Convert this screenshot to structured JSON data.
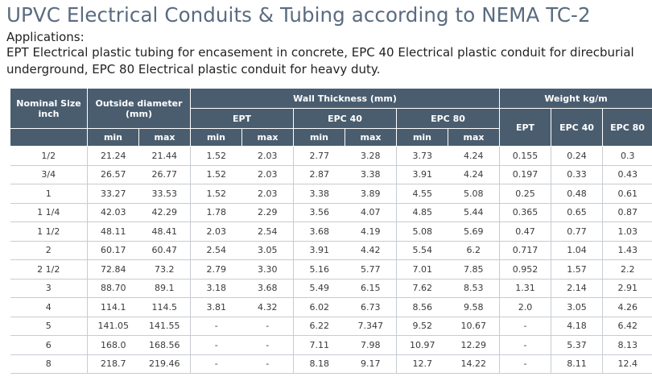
{
  "title": "UPVC Electrical Conduits & Tubing according to NEMA TC-2",
  "applications": {
    "heading": "Applications:",
    "line1": "EPT Electrical plastic tubing for encasement in concrete, EPC 40 Electrical plastic conduit for direcburial",
    "line2": "underground, EPC 80 Electrical plastic conduit for heavy duty."
  },
  "table": {
    "headers": {
      "nominal_size": "Nominal Size inch",
      "outside_diameter": "Outside diameter (mm)",
      "wall_thickness": "Wall Thickness (mm)",
      "weight": "Weight kg/m",
      "ept": "EPT",
      "epc40": "EPC 40",
      "epc80": "EPC 80",
      "min": "min",
      "max": "max"
    },
    "rows": [
      {
        "size": "1/2",
        "od_min": "21.24",
        "od_max": "21.44",
        "ept_min": "1.52",
        "ept_max": "2.03",
        "e40_min": "2.77",
        "e40_max": "3.28",
        "e80_min": "3.73",
        "e80_max": "4.24",
        "w_ept": "0.155",
        "w_e40": "0.24",
        "w_e80": "0.3"
      },
      {
        "size": "3/4",
        "od_min": "26.57",
        "od_max": "26.77",
        "ept_min": "1.52",
        "ept_max": "2.03",
        "e40_min": "2.87",
        "e40_max": "3.38",
        "e80_min": "3.91",
        "e80_max": "4.24",
        "w_ept": "0.197",
        "w_e40": "0.33",
        "w_e80": "0.43"
      },
      {
        "size": "1",
        "od_min": "33.27",
        "od_max": "33.53",
        "ept_min": "1.52",
        "ept_max": "2.03",
        "e40_min": "3.38",
        "e40_max": "3.89",
        "e80_min": "4.55",
        "e80_max": "5.08",
        "w_ept": "0.25",
        "w_e40": "0.48",
        "w_e80": "0.61"
      },
      {
        "size": "1 1/4",
        "od_min": "42.03",
        "od_max": "42.29",
        "ept_min": "1.78",
        "ept_max": "2.29",
        "e40_min": "3.56",
        "e40_max": "4.07",
        "e80_min": "4.85",
        "e80_max": "5.44",
        "w_ept": "0.365",
        "w_e40": "0.65",
        "w_e80": "0.87"
      },
      {
        "size": "1 1/2",
        "od_min": "48.11",
        "od_max": "48.41",
        "ept_min": "2.03",
        "ept_max": "2.54",
        "e40_min": "3.68",
        "e40_max": "4.19",
        "e80_min": "5.08",
        "e80_max": "5.69",
        "w_ept": "0.47",
        "w_e40": "0.77",
        "w_e80": "1.03"
      },
      {
        "size": "2",
        "od_min": "60.17",
        "od_max": "60.47",
        "ept_min": "2.54",
        "ept_max": "3.05",
        "e40_min": "3.91",
        "e40_max": "4.42",
        "e80_min": "5.54",
        "e80_max": "6.2",
        "w_ept": "0.717",
        "w_e40": "1.04",
        "w_e80": "1.43"
      },
      {
        "size": "2 1/2",
        "od_min": "72.84",
        "od_max": "73.2",
        "ept_min": "2.79",
        "ept_max": "3.30",
        "e40_min": "5.16",
        "e40_max": "5.77",
        "e80_min": "7.01",
        "e80_max": "7.85",
        "w_ept": "0.952",
        "w_e40": "1.57",
        "w_e80": "2.2"
      },
      {
        "size": "3",
        "od_min": "88.70",
        "od_max": "89.1",
        "ept_min": "3.18",
        "ept_max": "3.68",
        "e40_min": "5.49",
        "e40_max": "6.15",
        "e80_min": "7.62",
        "e80_max": "8.53",
        "w_ept": "1.31",
        "w_e40": "2.14",
        "w_e80": "2.91"
      },
      {
        "size": "4",
        "od_min": "114.1",
        "od_max": "114.5",
        "ept_min": "3.81",
        "ept_max": "4.32",
        "e40_min": "6.02",
        "e40_max": "6.73",
        "e80_min": "8.56",
        "e80_max": "9.58",
        "w_ept": "2.0",
        "w_e40": "3.05",
        "w_e80": "4.26"
      },
      {
        "size": "5",
        "od_min": "141.05",
        "od_max": "141.55",
        "ept_min": "-",
        "ept_max": "-",
        "e40_min": "6.22",
        "e40_max": "7.347",
        "e80_min": "9.52",
        "e80_max": "10.67",
        "w_ept": "-",
        "w_e40": "4.18",
        "w_e80": "6.42"
      },
      {
        "size": "6",
        "od_min": "168.0",
        "od_max": "168.56",
        "ept_min": "-",
        "ept_max": "-",
        "e40_min": "7.11",
        "e40_max": "7.98",
        "e80_min": "10.97",
        "e80_max": "12.29",
        "w_ept": "-",
        "w_e40": "5.37",
        "w_e80": "8.13"
      },
      {
        "size": "8",
        "od_min": "218.7",
        "od_max": "219.46",
        "ept_min": "-",
        "ept_max": "-",
        "e40_min": "8.18",
        "e40_max": "9.17",
        "e80_min": "12.7",
        "e80_max": "14.22",
        "w_ept": "-",
        "w_e40": "8.11",
        "w_e80": "12.4"
      }
    ]
  }
}
